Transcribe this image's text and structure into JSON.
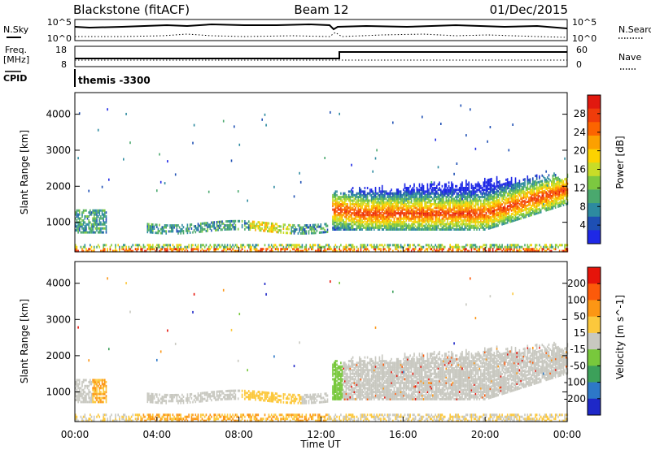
{
  "header": {
    "radar": "Blackstone (fitACF)",
    "beam": "Beam 12",
    "date": "01/Dec/2015"
  },
  "top_panels": {
    "nsky_label": "N.Sky",
    "nsearch_label": "N.Search",
    "noise_ticks_left": [
      "10^5",
      "10^0"
    ],
    "noise_ticks_right": [
      "10^5",
      "10^0"
    ],
    "freq_label_line1": "Freq.",
    "freq_label_line2": "[MHz]",
    "freq_ticks": [
      "18",
      "8"
    ],
    "nave_label": "Nave",
    "nave_ticks": [
      "60",
      "0"
    ],
    "cpid_label": "CPID",
    "cpid_value": "themis -3300"
  },
  "chart_data": [
    {
      "type": "heatmap",
      "title": "",
      "ylabel": "Slant Range [km]",
      "xlabel": "",
      "ylim": [
        180,
        4600
      ],
      "xlim": [
        0,
        24
      ],
      "yticks": [
        "1000",
        "2000",
        "3000",
        "4000"
      ],
      "colorbar_label": "Power [dB]",
      "colorbar_ticks": [
        "4",
        "8",
        "12",
        "16",
        "20",
        "24",
        "28"
      ],
      "colorbar_range": [
        0,
        32
      ],
      "colors": [
        "#1e28e6",
        "#1e4fb4",
        "#2d8aa0",
        "#4aa86e",
        "#7cc840",
        "#c8dc28",
        "#fcd200",
        "#fca000",
        "#fc6400",
        "#f03c0a",
        "#e1190f"
      ]
    },
    {
      "type": "heatmap",
      "title": "",
      "ylabel": "Slant Range [km]",
      "xlabel": "Time UT",
      "ylim": [
        180,
        4600
      ],
      "xlim": [
        0,
        24
      ],
      "yticks": [
        "1000",
        "2000",
        "3000",
        "4000"
      ],
      "xticks": [
        "00:00",
        "04:00",
        "08:00",
        "12:00",
        "16:00",
        "20:00",
        "00:00"
      ],
      "colorbar_label": "Velocity [m s^-1]",
      "colorbar_ticks": [
        "200",
        "100",
        "50",
        "15",
        "-15",
        "-50",
        "-100",
        "-200"
      ],
      "colors": [
        "#1e28c8",
        "#2d78c8",
        "#3ca05a",
        "#78c83c",
        "#c8c8c0",
        "#fcc83c",
        "#fc9614",
        "#fc5a0a",
        "#e6140a"
      ]
    }
  ]
}
